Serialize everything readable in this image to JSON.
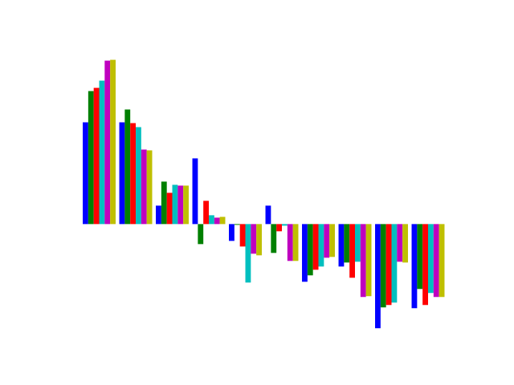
{
  "chart_data": {
    "type": "bar",
    "categories": [
      null,
      null,
      null,
      null,
      null,
      null,
      null,
      null,
      null,
      null
    ],
    "series": [
      {
        "color": "#0000ff",
        "values": [
          127,
          127,
          23,
          82,
          -21,
          23,
          -72,
          -53,
          -130,
          -105
        ]
      },
      {
        "color": "#008000",
        "values": [
          166,
          143,
          53,
          -25,
          -1,
          -36,
          -64,
          -48,
          -104,
          -81
        ]
      },
      {
        "color": "#ff0000",
        "values": [
          170,
          126,
          39,
          29,
          -28,
          -9,
          -57,
          -67,
          -101,
          -101
        ]
      },
      {
        "color": "#00bfbf",
        "values": [
          179,
          121,
          49,
          11,
          -73,
          -2,
          -53,
          -47,
          -98,
          -86
        ]
      },
      {
        "color": "#bf00bf",
        "values": [
          204,
          93,
          48,
          8,
          -37,
          -46,
          -42,
          -91,
          -47,
          -91
        ]
      },
      {
        "color": "#bfbf00",
        "values": [
          205,
          92,
          48,
          9,
          -39,
          -46,
          -41,
          -90,
          -48,
          -91
        ]
      }
    ],
    "ylim": [
      -148,
      222
    ]
  }
}
